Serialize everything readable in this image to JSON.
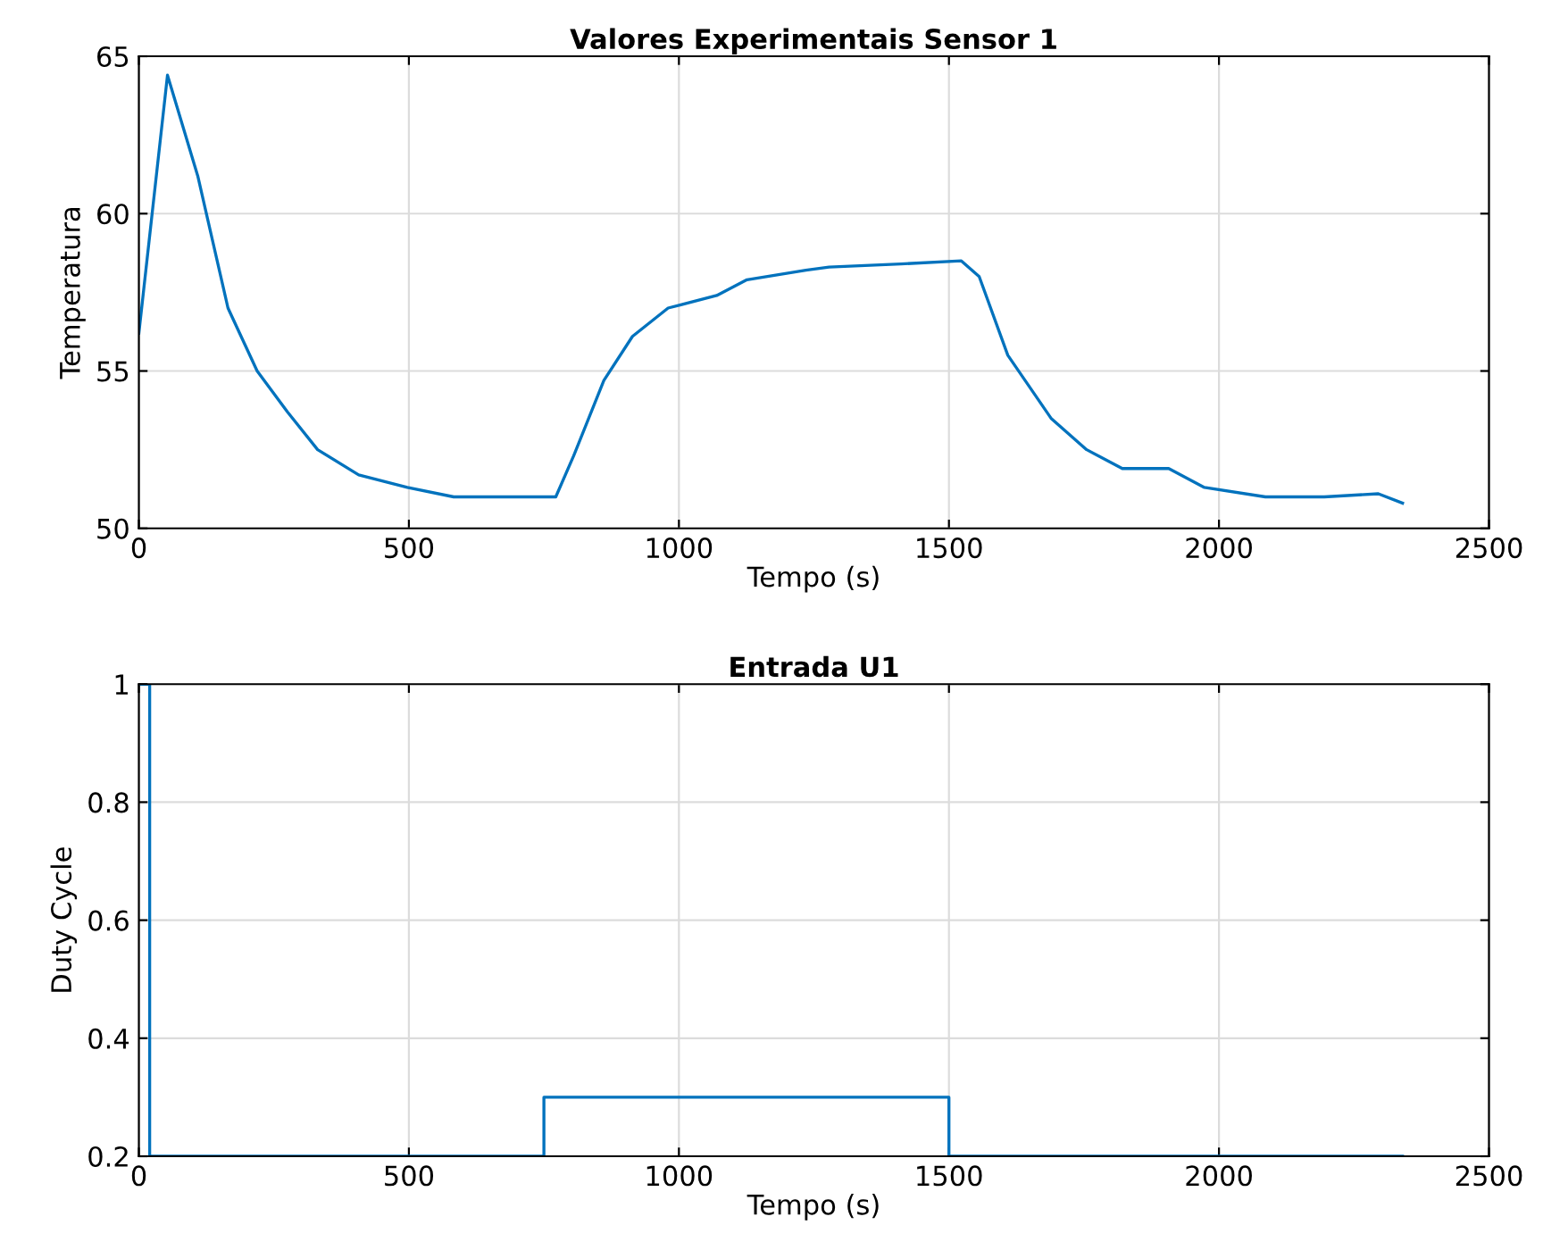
{
  "chart_data": [
    {
      "type": "line",
      "title": "Valores Experimentais Sensor 1",
      "xlabel": "Tempo (s)",
      "ylabel": "Temperatura",
      "xlim": [
        0,
        2500
      ],
      "xticks": [
        0,
        500,
        1000,
        1500,
        2000,
        2500
      ],
      "ylim": [
        50,
        65
      ],
      "yticks": [
        50,
        55,
        60,
        65
      ],
      "grid": true,
      "series": [
        {
          "color": "#0072bd",
          "x": [
            0,
            53,
            109,
            165,
            219,
            275,
            331,
            407,
            497,
            583,
            682,
            772,
            805,
            861,
            914,
            980,
            1070,
            1126,
            1235,
            1278,
            1411,
            1523,
            1556,
            1609,
            1689,
            1755,
            1821,
            1907,
            1973,
            2086,
            2195,
            2295,
            2340
          ],
          "values": [
            56.2,
            64.4,
            61.2,
            57.0,
            55.0,
            53.7,
            52.5,
            51.7,
            51.3,
            51.0,
            51.0,
            51.0,
            52.3,
            54.7,
            56.1,
            57.0,
            57.4,
            57.9,
            58.2,
            58.3,
            58.4,
            58.5,
            58.0,
            55.5,
            53.5,
            52.5,
            51.9,
            51.9,
            51.3,
            51.0,
            51.0,
            51.1,
            50.8
          ]
        }
      ]
    },
    {
      "type": "step",
      "title": "Entrada U1",
      "xlabel": "Tempo (s)",
      "ylabel": "Duty Cycle",
      "xlim": [
        0,
        2500
      ],
      "xticks": [
        0,
        500,
        1000,
        1500,
        2000,
        2500
      ],
      "ylim": [
        0.2,
        1
      ],
      "yticks": [
        0.2,
        0.4,
        0.6,
        0.8,
        1
      ],
      "grid": true,
      "series": [
        {
          "color": "#0072bd",
          "x": [
            0,
            20,
            750,
            1500,
            2340
          ],
          "values": [
            1,
            0.2,
            0.3,
            0.2,
            0.2
          ]
        }
      ]
    }
  ]
}
